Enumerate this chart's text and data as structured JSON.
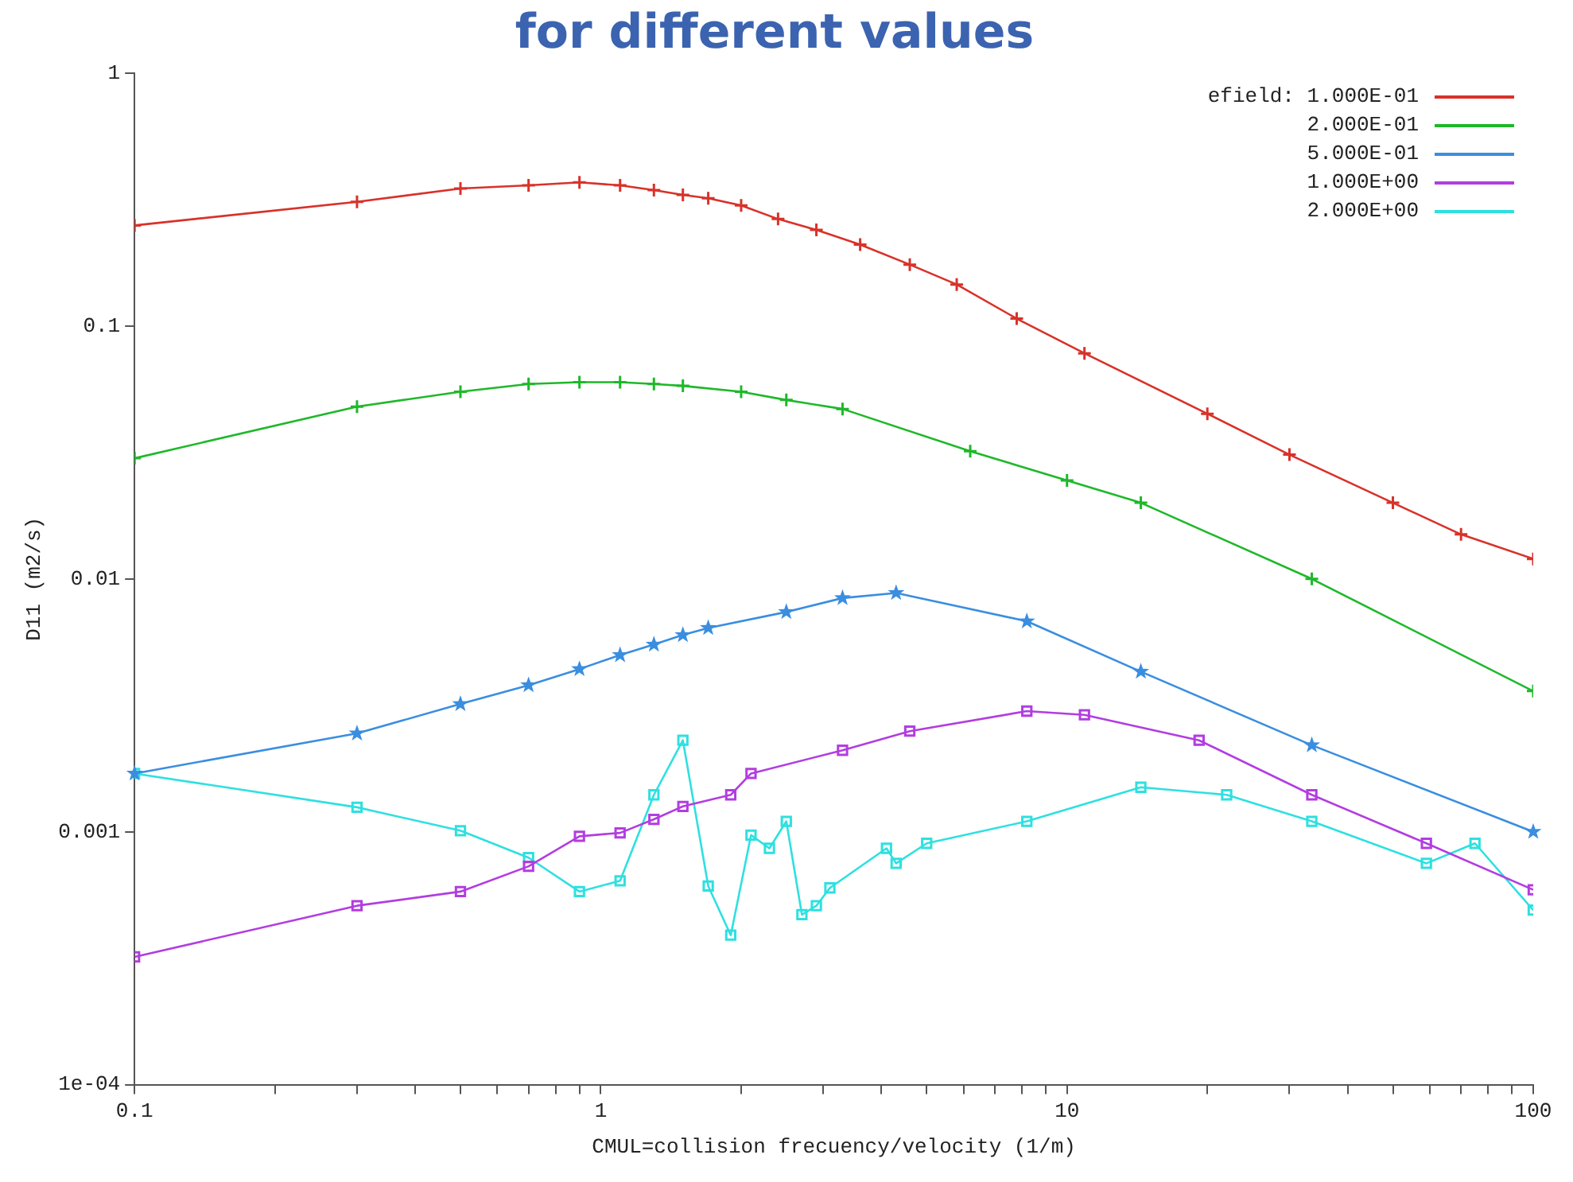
{
  "chart_data": {
    "type": "line",
    "title": "for different values",
    "xlabel": "CMUL=collision frecuency/velocity (1/m)",
    "ylabel": "D11 (m2/s)",
    "legend_title": "efield:",
    "legend": "top right",
    "grid": false,
    "log": "xy",
    "line_style": "solid",
    "xlim": [
      0.1,
      100
    ],
    "ylim": [
      0.0001,
      1
    ],
    "xticks": [
      0.1,
      {
        "value": 0.2,
        "label": null
      },
      {
        "value": 0.3,
        "label": null
      },
      {
        "value": 0.4,
        "label": null
      },
      {
        "value": 0.5,
        "label": null
      },
      {
        "value": 0.6,
        "label": null
      },
      {
        "value": 0.7,
        "label": null
      },
      {
        "value": 0.8,
        "label": null
      },
      {
        "value": 0.9,
        "label": null
      },
      1,
      {
        "value": 2,
        "label": null
      },
      {
        "value": 3,
        "label": null
      },
      {
        "value": 4,
        "label": null
      },
      {
        "value": 5,
        "label": null
      },
      {
        "value": 6,
        "label": null
      },
      {
        "value": 7,
        "label": null
      },
      {
        "value": 8,
        "label": null
      },
      {
        "value": 9,
        "label": null
      },
      10,
      {
        "value": 20,
        "label": null
      },
      {
        "value": 30,
        "label": null
      },
      {
        "value": 40,
        "label": null
      },
      {
        "value": 50,
        "label": null
      },
      {
        "value": 60,
        "label": null
      },
      {
        "value": 70,
        "label": null
      },
      {
        "value": 80,
        "label": null
      },
      {
        "value": 90,
        "label": null
      },
      100
    ],
    "yticks": [
      {
        "value": 0.0001,
        "label": "1e-04"
      },
      0.001,
      0.01,
      0.1,
      1
    ],
    "series": [
      {
        "name": "1.000E-01",
        "color": "#d8322a",
        "marker": "cross",
        "x": [
          0.1,
          0.3,
          0.5,
          0.7,
          0.9,
          1.1,
          1.3,
          1.5,
          1.7,
          2,
          2.4,
          2.9,
          3.6,
          4.6,
          5.8,
          7.8,
          10.9,
          20,
          30,
          50,
          70,
          100
        ],
        "values": [
          0.25,
          0.31,
          0.35,
          0.36,
          0.37,
          0.36,
          0.345,
          0.33,
          0.32,
          0.3,
          0.265,
          0.24,
          0.21,
          0.175,
          0.146,
          0.107,
          0.078,
          0.045,
          0.031,
          0.02,
          0.015,
          0.012
        ]
      },
      {
        "name": "2.000E-01",
        "color": "#1fb82a",
        "marker": "cross",
        "x": [
          0.1,
          0.3,
          0.5,
          0.7,
          0.9,
          1.1,
          1.3,
          1.5,
          2,
          2.5,
          3.3,
          6.2,
          10,
          14.4,
          33.5,
          100
        ],
        "values": [
          0.03,
          0.048,
          0.055,
          0.059,
          0.06,
          0.06,
          0.059,
          0.058,
          0.055,
          0.051,
          0.047,
          0.032,
          0.0245,
          0.02,
          0.01,
          0.0036
        ]
      },
      {
        "name": "5.000E-01",
        "color": "#3a8ee0",
        "marker": "star",
        "x": [
          0.1,
          0.3,
          0.5,
          0.7,
          0.9,
          1.1,
          1.3,
          1.5,
          1.7,
          2.5,
          3.3,
          4.3,
          8.2,
          14.4,
          33.5,
          100
        ],
        "values": [
          0.0017,
          0.00245,
          0.0032,
          0.0038,
          0.0044,
          0.005,
          0.0055,
          0.006,
          0.0064,
          0.0074,
          0.0084,
          0.0088,
          0.0068,
          0.0043,
          0.0022,
          0.001
        ]
      },
      {
        "name": "1.000E+00",
        "color": "#b23de0",
        "marker": "square",
        "x": [
          0.1,
          0.3,
          0.5,
          0.7,
          0.9,
          1.1,
          1.3,
          1.5,
          1.9,
          2.1,
          3.3,
          4.6,
          8.2,
          10.9,
          19.2,
          33.5,
          59,
          100
        ],
        "values": [
          0.00032,
          0.00051,
          0.00058,
          0.00073,
          0.00096,
          0.00099,
          0.00112,
          0.00126,
          0.0014,
          0.0017,
          0.0021,
          0.0025,
          0.003,
          0.0029,
          0.0023,
          0.0014,
          0.0009,
          0.00059
        ]
      },
      {
        "name": "2.000E+00",
        "color": "#2ee0e0",
        "marker": "square",
        "x": [
          0.1,
          0.3,
          0.5,
          0.7,
          0.9,
          1.1,
          1.3,
          1.5,
          1.7,
          1.9,
          2.1,
          2.3,
          2.5,
          2.7,
          2.9,
          3.1,
          4.1,
          4.3,
          5,
          8.2,
          14.4,
          22,
          33.5,
          59,
          75,
          100
        ],
        "values": [
          0.0017,
          0.00125,
          0.00101,
          0.00079,
          0.00058,
          0.00064,
          0.0014,
          0.0023,
          0.00061,
          0.00039,
          0.00097,
          0.00086,
          0.0011,
          0.00047,
          0.00051,
          0.0006,
          0.00086,
          0.00075,
          0.0009,
          0.0011,
          0.0015,
          0.0014,
          0.0011,
          0.00075,
          0.0009,
          0.00049
        ]
      }
    ]
  }
}
